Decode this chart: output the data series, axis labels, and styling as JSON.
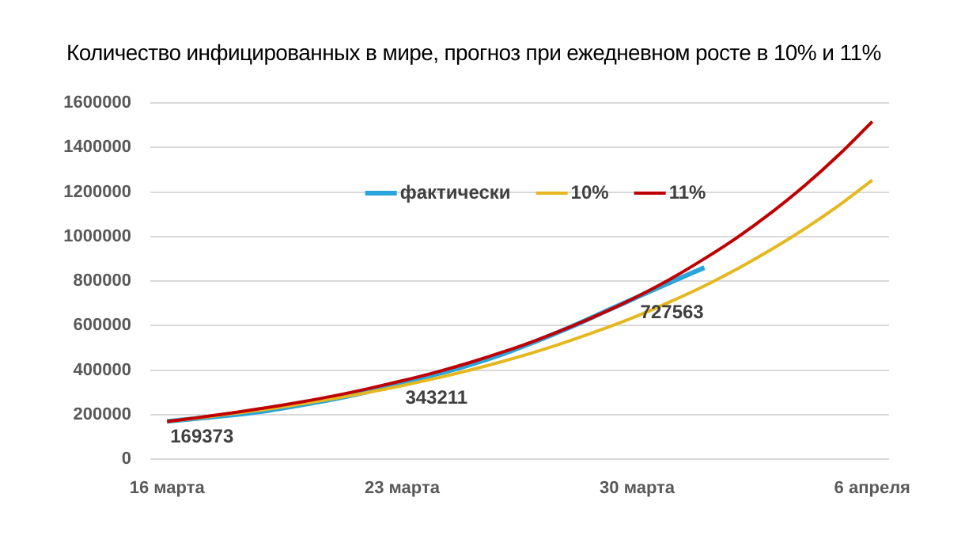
{
  "chart_data": {
    "type": "line",
    "title": "Количество инфицированных в мире, прогноз при ежедневном росте в 10% и 11%",
    "categories": [
      "16 марта",
      null,
      null,
      null,
      null,
      null,
      null,
      "23 марта",
      null,
      null,
      null,
      null,
      null,
      null,
      "30 марта",
      null,
      null,
      null,
      null,
      null,
      null,
      "6 апреля"
    ],
    "series": [
      {
        "name": "фактически",
        "color": "#2aa5dc",
        "values": [
          169373,
          184000,
          199000,
          218000,
          243000,
          271000,
          304000,
          343211,
          381000,
          423000,
          472000,
          530000,
          592000,
          660000,
          727563,
          795000,
          860000,
          null,
          null,
          null,
          null,
          null
        ],
        "value_labels": [
          "169373",
          null,
          null,
          null,
          null,
          null,
          null,
          "343211",
          null,
          null,
          null,
          null,
          null,
          null,
          "727563",
          null,
          null,
          null,
          null,
          null,
          null,
          null
        ]
      },
      {
        "name": "10%",
        "color": "#e6b820",
        "values": [
          169000,
          186000,
          205000,
          225000,
          248000,
          273000,
          300000,
          330000,
          363000,
          399000,
          439000,
          483000,
          532000,
          585000,
          643000,
          708000,
          778000,
          856000,
          942000,
          1036000,
          1139000,
          1253000
        ]
      },
      {
        "name": "11%",
        "color": "#c00000",
        "values": [
          169000,
          188000,
          209000,
          232000,
          257000,
          285000,
          317000,
          352000,
          390000,
          433000,
          481000,
          534000,
          593000,
          658000,
          730000,
          810000,
          900000,
          998000,
          1108000,
          1230000,
          1366000,
          1516000
        ]
      }
    ],
    "ylim": [
      0,
      1600000
    ],
    "yticks": [
      0,
      200000,
      400000,
      600000,
      800000,
      1000000,
      1200000,
      1400000,
      1600000
    ],
    "grid": "y",
    "legend": "top",
    "marker": "none",
    "line_style": "solid"
  }
}
